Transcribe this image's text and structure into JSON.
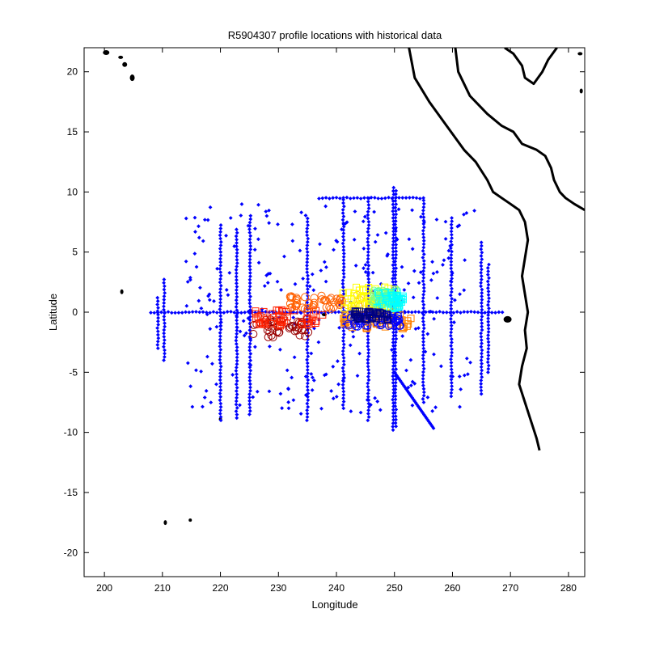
{
  "chart_data": {
    "type": "scatter",
    "title": "R5904307 profile locations with historical data",
    "xlabel": "Longitude",
    "ylabel": "Latitude",
    "xlim": [
      196.5,
      282.8
    ],
    "ylim": [
      -22,
      22
    ],
    "xticks": [
      200,
      210,
      220,
      230,
      240,
      250,
      260,
      270,
      280
    ],
    "yticks": [
      -20,
      -15,
      -10,
      -5,
      0,
      5,
      10,
      15,
      20
    ],
    "grid": false,
    "legend": "none",
    "colors": {
      "historical": "#0000ff",
      "coast": "#000000",
      "track_scale": [
        "#000080",
        "#0000ff",
        "#00bfff",
        "#00ffff",
        "#7fff7f",
        "#ffff00",
        "#ffbf00",
        "#ff8000",
        "#ff0000",
        "#800000"
      ]
    },
    "series": [
      {
        "role": "historical",
        "marker": "diamond",
        "lines": [
          {
            "x": 209.2,
            "y_from": -3.0,
            "y_to": 1.3
          },
          {
            "x": 210.3,
            "y_from": -4.0,
            "y_to": 3.0
          },
          {
            "x": 220.0,
            "y_from": -9.0,
            "y_to": 7.5
          },
          {
            "x": 222.8,
            "y_from": -8.8,
            "y_to": 7.0
          },
          {
            "x": 225.1,
            "y_from": -8.5,
            "y_to": 8.2
          },
          {
            "x": 235.0,
            "y_from": -9.0,
            "y_to": 8.0
          },
          {
            "x": 241.2,
            "y_from": -8.0,
            "y_to": 9.5
          },
          {
            "x": 245.5,
            "y_from": -9.0,
            "y_to": 9.5
          },
          {
            "x": 249.8,
            "y_from": -9.8,
            "y_to": 10.5
          },
          {
            "x": 250.2,
            "y_from": -9.5,
            "y_to": 10.3
          },
          {
            "x": 255.0,
            "y_from": -7.5,
            "y_to": 9.5
          },
          {
            "x": 259.8,
            "y_from": -7.0,
            "y_to": 8.0
          },
          {
            "x": 265.0,
            "y_from": -6.8,
            "y_to": 6.0
          },
          {
            "x": 266.2,
            "y_from": -5.0,
            "y_to": 4.0
          }
        ],
        "rows": [
          {
            "y": 9.5,
            "x_from": 237.0,
            "x_to": 255.0
          },
          {
            "y": 0.0,
            "x_from": 208.0,
            "x_to": 269.0
          }
        ],
        "diagonal": {
          "x_from": 250.0,
          "x_to": 256.8,
          "y_from": -5.0,
          "y_to": -9.7
        }
      },
      {
        "role": "float_track",
        "marker": "open circle/square",
        "segments": [
          {
            "x_from": 225.5,
            "x_to": 236.0,
            "y_center": -1.3,
            "spread": 0.8,
            "color": "#990000"
          },
          {
            "x_from": 226.0,
            "x_to": 238.0,
            "y_center": -0.5,
            "spread": 0.7,
            "color": "#ff2000"
          },
          {
            "x_from": 232.0,
            "x_to": 241.0,
            "y_center": 0.8,
            "spread": 0.6,
            "color": "#ff6000"
          },
          {
            "x_from": 241.0,
            "x_to": 253.0,
            "y_center": -0.8,
            "spread": 0.6,
            "color": "#ff8000"
          },
          {
            "x_from": 241.0,
            "x_to": 251.0,
            "y_center": 0.5,
            "spread": 1.1,
            "color": "#ffbf00"
          },
          {
            "x_from": 241.0,
            "x_to": 250.0,
            "y_center": 1.2,
            "spread": 0.9,
            "color": "#ffff00"
          },
          {
            "x_from": 246.0,
            "x_to": 251.0,
            "y_center": 1.3,
            "spread": 0.6,
            "color": "#7fff7f"
          },
          {
            "x_from": 247.0,
            "x_to": 251.5,
            "y_center": 1.0,
            "spread": 0.7,
            "color": "#00ffff"
          },
          {
            "x_from": 242.0,
            "x_to": 251.0,
            "y_center": -0.7,
            "spread": 0.5,
            "color": "#0000ff"
          },
          {
            "x_from": 243.0,
            "x_to": 249.0,
            "y_center": -0.3,
            "spread": 0.4,
            "color": "#000080"
          }
        ]
      }
    ]
  }
}
